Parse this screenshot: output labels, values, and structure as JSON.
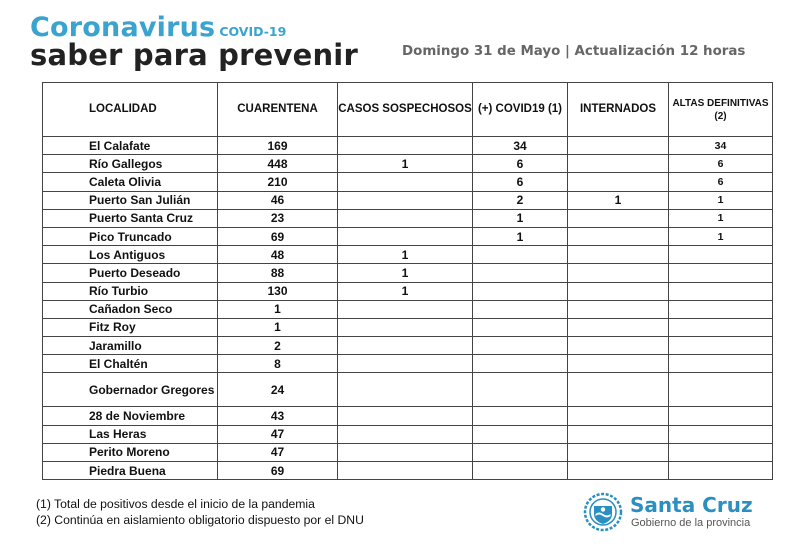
{
  "header": {
    "title_top": "Coronavirus",
    "title_tag": "COVID-19",
    "title_main": "saber para prevenir",
    "date_line": "Domingo 31 de Mayo | Actualización 12 horas"
  },
  "table": {
    "columns": [
      "LOCALIDAD",
      "CUARENTENA",
      "CASOS SOSPECHOSOS",
      "(+) COVID19 (1)",
      "INTERNADOS",
      "ALTAS DEFINITIVAS (2)"
    ],
    "rows": [
      {
        "localidad": "El Calafate",
        "cuarentena": "169",
        "sospechosos": "",
        "covid": "34",
        "internados": "",
        "altas": "34"
      },
      {
        "localidad": "Río Gallegos",
        "cuarentena": "448",
        "sospechosos": "1",
        "covid": "6",
        "internados": "",
        "altas": "6"
      },
      {
        "localidad": "Caleta Olivia",
        "cuarentena": "210",
        "sospechosos": "",
        "covid": "6",
        "internados": "",
        "altas": "6"
      },
      {
        "localidad": "Puerto San Julián",
        "cuarentena": "46",
        "sospechosos": "",
        "covid": "2",
        "internados": "1",
        "altas": "1"
      },
      {
        "localidad": "Puerto Santa Cruz",
        "cuarentena": "23",
        "sospechosos": "",
        "covid": "1",
        "internados": "",
        "altas": "1"
      },
      {
        "localidad": "Pico Truncado",
        "cuarentena": "69",
        "sospechosos": "",
        "covid": "1",
        "internados": "",
        "altas": "1"
      },
      {
        "localidad": "Los Antiguos",
        "cuarentena": "48",
        "sospechosos": "1",
        "covid": "",
        "internados": "",
        "altas": ""
      },
      {
        "localidad": "Puerto Deseado",
        "cuarentena": "88",
        "sospechosos": "1",
        "covid": "",
        "internados": "",
        "altas": ""
      },
      {
        "localidad": "Río Turbio",
        "cuarentena": "130",
        "sospechosos": "1",
        "covid": "",
        "internados": "",
        "altas": ""
      },
      {
        "localidad": "Cañadon Seco",
        "cuarentena": "1",
        "sospechosos": "",
        "covid": "",
        "internados": "",
        "altas": ""
      },
      {
        "localidad": "Fitz Roy",
        "cuarentena": "1",
        "sospechosos": "",
        "covid": "",
        "internados": "",
        "altas": ""
      },
      {
        "localidad": "Jaramillo",
        "cuarentena": "2",
        "sospechosos": "",
        "covid": "",
        "internados": "",
        "altas": ""
      },
      {
        "localidad": "El Chaltén",
        "cuarentena": "8",
        "sospechosos": "",
        "covid": "",
        "internados": "",
        "altas": ""
      },
      {
        "localidad": "Gobernador Gregores",
        "cuarentena": "24",
        "sospechosos": "",
        "covid": "",
        "internados": "",
        "altas": ""
      },
      {
        "localidad": "28 de Noviembre",
        "cuarentena": "43",
        "sospechosos": "",
        "covid": "",
        "internados": "",
        "altas": ""
      },
      {
        "localidad": "Las Heras",
        "cuarentena": "47",
        "sospechosos": "",
        "covid": "",
        "internados": "",
        "altas": ""
      },
      {
        "localidad": "Perito Moreno",
        "cuarentena": "47",
        "sospechosos": "",
        "covid": "",
        "internados": "",
        "altas": ""
      },
      {
        "localidad": "Piedra Buena",
        "cuarentena": "69",
        "sospechosos": "",
        "covid": "",
        "internados": "",
        "altas": ""
      }
    ]
  },
  "footnotes": [
    "(1) Total de positivos desde el inicio de la pandemia",
    "(2) Continúa en aislamiento obligatorio dispuesto por el DNU"
  ],
  "brand": {
    "name": "Santa Cruz",
    "subtitle": "Gobierno de la provincia",
    "color": "#2a8fc1",
    "icon": "provincial-shield-logo"
  },
  "colors": {
    "title_accent": "#3aa3cf",
    "title_main": "#222222",
    "date_text": "#666666"
  }
}
